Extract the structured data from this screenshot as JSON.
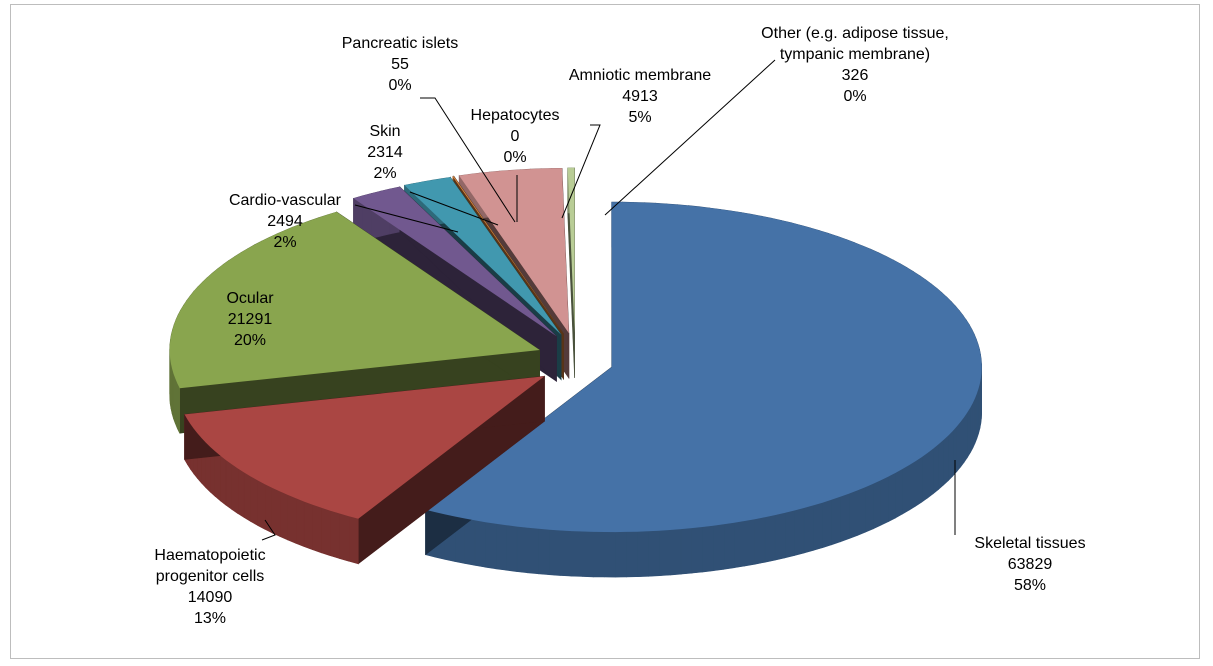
{
  "chart_data": {
    "type": "pie",
    "3d": true,
    "exploded": true,
    "categories": [
      "Skeletal  tissues",
      "Haematopoietic progenitor cells",
      "Ocular",
      "Cardio-vascular",
      "Skin",
      "Pancreatic islets",
      "Hepatocytes",
      "Amniotic membrane",
      "Other (e.g. adipose tissue, tympanic membrane)"
    ],
    "values": [
      63829,
      14090,
      21291,
      2494,
      2314,
      55,
      0,
      4913,
      326
    ],
    "percent_labels": [
      "58%",
      "13%",
      "20%",
      "2%",
      "2%",
      "0%",
      "0%",
      "5%",
      "0%"
    ],
    "colors": [
      "#4572a7",
      "#aa4643",
      "#89a54e",
      "#71588f",
      "#4198af",
      "#db843d",
      "#93a9cf",
      "#d19392",
      "#b9cd96"
    ]
  }
}
